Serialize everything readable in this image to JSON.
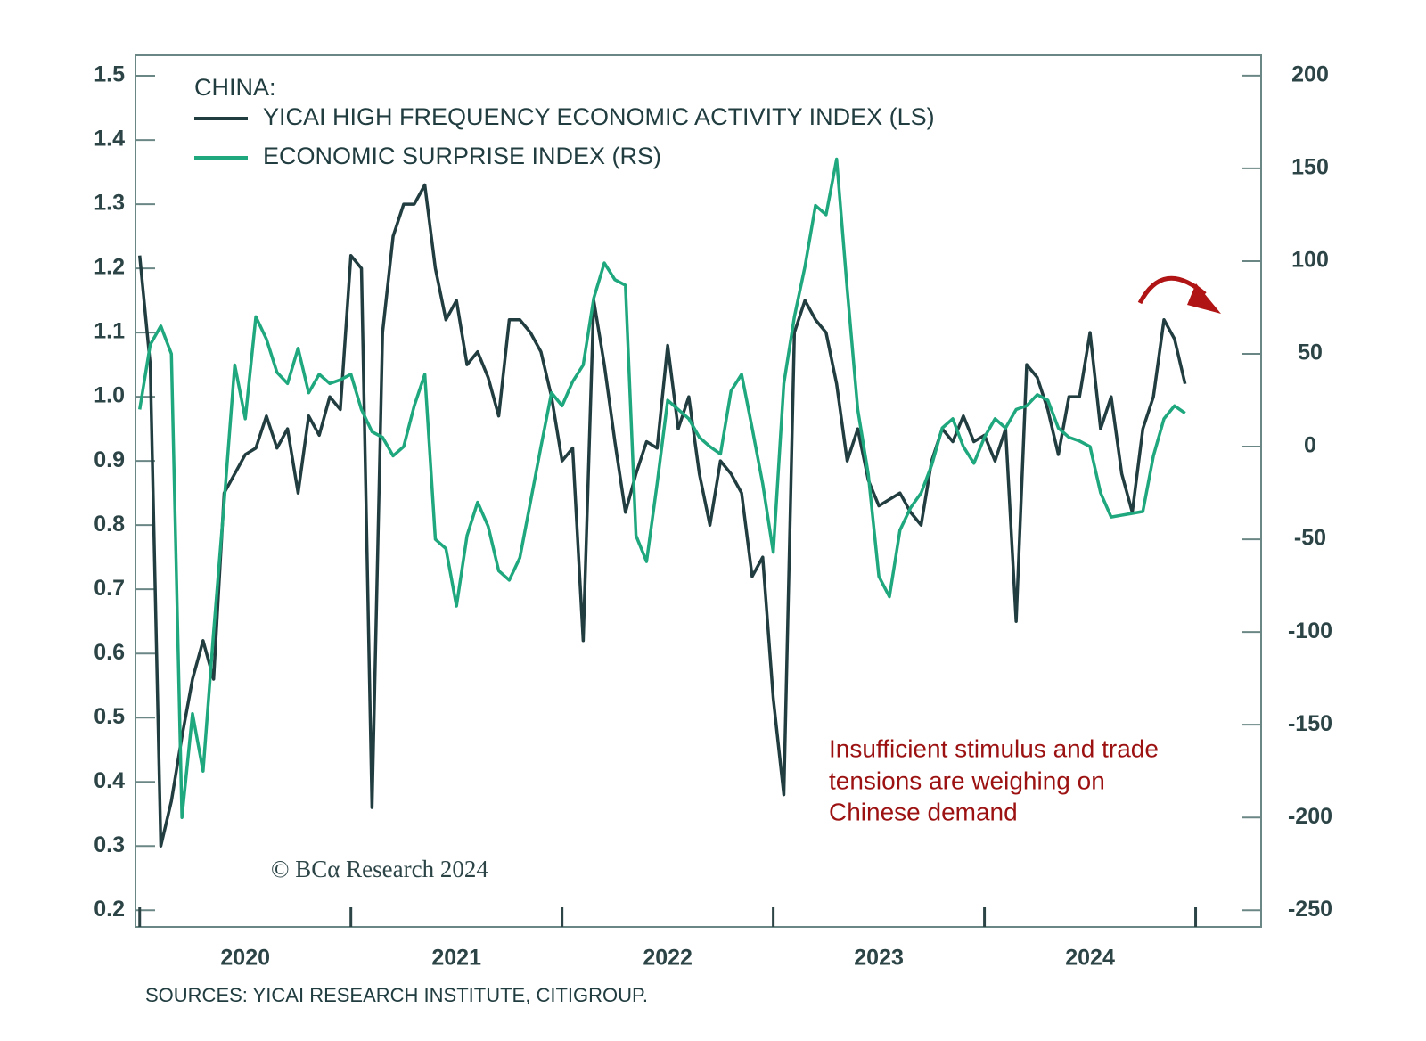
{
  "chart_data": {
    "type": "line",
    "legend_title": "CHINA:",
    "annotation": [
      "Insufficient stimulus and trade",
      "tensions are weighing on",
      "Chinese demand"
    ],
    "watermark": "© BCα Research 2024",
    "source": "SOURCES: YICAI RESEARCH INSTITUTE, CITIGROUP.",
    "x": [
      2020.0,
      2020.05,
      2020.1,
      2020.15,
      2020.2,
      2020.25,
      2020.3,
      2020.35,
      2020.4,
      2020.45,
      2020.5,
      2020.55,
      2020.6,
      2020.65,
      2020.7,
      2020.75,
      2020.8,
      2020.85,
      2020.9,
      2020.95,
      2021.0,
      2021.05,
      2021.1,
      2021.15,
      2021.2,
      2021.25,
      2021.3,
      2021.35,
      2021.4,
      2021.45,
      2021.5,
      2021.55,
      2021.6,
      2021.65,
      2021.7,
      2021.75,
      2021.8,
      2021.85,
      2021.9,
      2021.95,
      2022.0,
      2022.05,
      2022.1,
      2022.15,
      2022.2,
      2022.25,
      2022.3,
      2022.35,
      2022.4,
      2022.45,
      2022.5,
      2022.55,
      2022.6,
      2022.65,
      2022.7,
      2022.75,
      2022.8,
      2022.85,
      2022.9,
      2022.95,
      2023.0,
      2023.05,
      2023.1,
      2023.15,
      2023.2,
      2023.25,
      2023.3,
      2023.35,
      2023.4,
      2023.45,
      2023.5,
      2023.55,
      2023.6,
      2023.65,
      2023.7,
      2023.75,
      2023.8,
      2023.85,
      2023.9,
      2023.95,
      2024.0,
      2024.05,
      2024.1,
      2024.15,
      2024.2,
      2024.25,
      2024.3,
      2024.35,
      2024.4,
      2024.45,
      2024.5,
      2024.55,
      2024.6,
      2024.65,
      2024.7,
      2024.75,
      2024.8,
      2024.85,
      2024.9,
      2024.95
    ],
    "series": [
      {
        "name": "YICAI HIGH FREQUENCY ECONOMIC ACTIVITY INDEX (LS)",
        "color": "#213d40",
        "axis": "y",
        "values": [
          1.22,
          1.05,
          0.3,
          0.37,
          0.47,
          0.56,
          0.62,
          0.56,
          0.85,
          0.88,
          0.91,
          0.92,
          0.97,
          0.92,
          0.95,
          0.85,
          0.97,
          0.94,
          1.0,
          0.98,
          1.22,
          1.2,
          0.36,
          1.1,
          1.25,
          1.3,
          1.3,
          1.33,
          1.2,
          1.12,
          1.15,
          1.05,
          1.07,
          1.03,
          0.97,
          1.12,
          1.12,
          1.1,
          1.07,
          1.0,
          0.9,
          0.92,
          0.62,
          1.15,
          1.05,
          0.93,
          0.82,
          0.88,
          0.93,
          0.92,
          1.08,
          0.95,
          1.0,
          0.88,
          0.8,
          0.9,
          0.88,
          0.85,
          0.72,
          0.75,
          0.53,
          0.38,
          1.1,
          1.15,
          1.12,
          1.1,
          1.02,
          0.9,
          0.95,
          0.87,
          0.83,
          0.84,
          0.85,
          0.82,
          0.8,
          0.9,
          0.95,
          0.93,
          0.97,
          0.93,
          0.94,
          0.9,
          0.95,
          0.65,
          1.05,
          1.03,
          0.98,
          0.91,
          1.0,
          1.0,
          1.1,
          0.95,
          1.0,
          0.88,
          0.82,
          0.95,
          1.0,
          1.12,
          1.09,
          1.02
        ]
      },
      {
        "name": "ECONOMIC SURPRISE INDEX (RS)",
        "color": "#1fa77e",
        "axis": "y2",
        "values": [
          20,
          55,
          65,
          50,
          -200,
          -144,
          -175,
          -100,
          -30,
          44,
          15,
          70,
          58,
          40,
          34,
          53,
          29,
          39,
          34,
          36,
          39,
          20,
          8,
          5,
          -5,
          0,
          22,
          39,
          -50,
          -55,
          -86,
          -48,
          -30,
          -43,
          -67,
          -72,
          -60,
          -30,
          0,
          29,
          22,
          35,
          44,
          80,
          99,
          90,
          87,
          -48,
          -62,
          -20,
          25,
          20,
          15,
          5,
          0,
          -4,
          30,
          39,
          10,
          -20,
          -57,
          34,
          70,
          97,
          130,
          125,
          155,
          85,
          20,
          -15,
          -70,
          -81,
          -45,
          -33,
          -25,
          -10,
          10,
          15,
          0,
          -9,
          5,
          15,
          10,
          20,
          22,
          28,
          25,
          10,
          5,
          3,
          0,
          -25,
          -38,
          -37,
          -36,
          -35,
          -5,
          15,
          22,
          18
        ]
      }
    ],
    "xlim": [
      2019.98,
      2025.31
    ],
    "xticks": [
      {
        "value": 2020,
        "label": "2020"
      },
      {
        "value": 2021,
        "label": "2021"
      },
      {
        "value": 2022,
        "label": "2022"
      },
      {
        "value": 2023,
        "label": "2023"
      },
      {
        "value": 2024,
        "label": "2024"
      },
      {
        "value": 2025,
        "label": null
      }
    ],
    "ylim": [
      0.174,
      1.532
    ],
    "yticks": [
      0.2,
      0.3,
      0.4,
      0.5,
      0.6,
      0.7,
      0.8,
      0.9,
      {
        "value": 1,
        "label": "1.0"
      },
      1.1,
      1.2,
      1.3,
      1.4,
      1.5
    ],
    "y2lim": [
      -259,
      211
    ],
    "y2ticks": [
      -250,
      -200,
      -150,
      -100,
      -50,
      0,
      50,
      100,
      150,
      200
    ],
    "grid": false
  }
}
